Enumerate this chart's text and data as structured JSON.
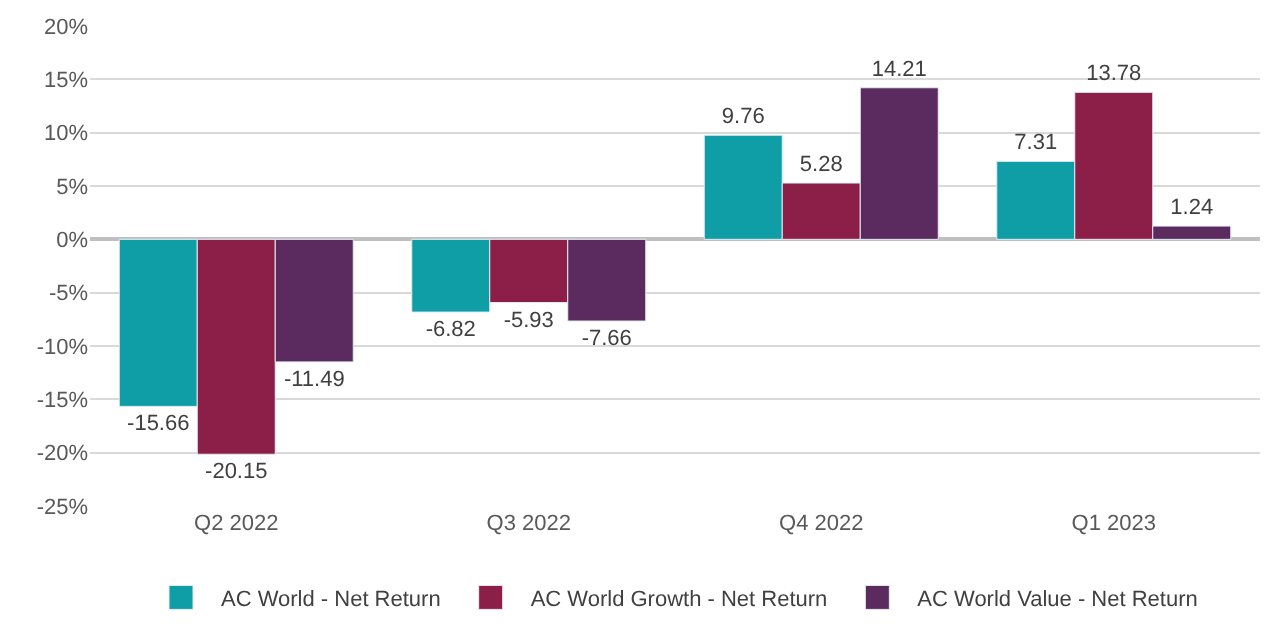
{
  "chart_data": {
    "type": "bar",
    "categories": [
      "Q2 2022",
      "Q3 2022",
      "Q4 2022",
      "Q1 2023"
    ],
    "series": [
      {
        "name": "AC World - Net Return",
        "color": "#0f9ea5",
        "values": [
          -15.66,
          -6.82,
          9.76,
          7.31
        ]
      },
      {
        "name": "AC World Growth - Net Return",
        "color": "#8c1f47",
        "values": [
          -20.15,
          -5.93,
          5.28,
          13.78
        ]
      },
      {
        "name": "AC World Value - Net Return",
        "color": "#5b2a5f",
        "values": [
          -11.49,
          -7.66,
          14.21,
          1.24
        ]
      }
    ],
    "ylim": [
      -25,
      20
    ],
    "yticks": [
      {
        "value": -25,
        "label": "-25%"
      },
      {
        "value": -20,
        "label": "-20%"
      },
      {
        "value": -15,
        "label": "-15%"
      },
      {
        "value": -10,
        "label": "-10%"
      },
      {
        "value": -5,
        "label": "-5%"
      },
      {
        "value": 0,
        "label": "0%"
      },
      {
        "value": 5,
        "label": "5%"
      },
      {
        "value": 10,
        "label": "10%"
      },
      {
        "value": 15,
        "label": "15%"
      },
      {
        "value": 20,
        "label": "20%"
      }
    ],
    "grid": "y",
    "legend": "bottom",
    "data_labels": true
  }
}
